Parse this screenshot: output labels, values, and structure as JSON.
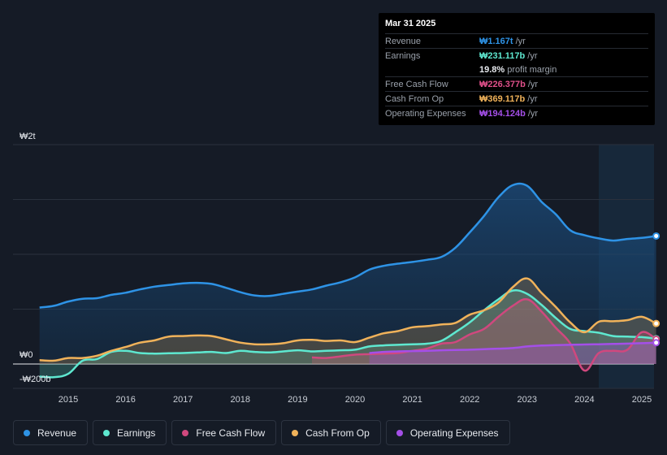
{
  "tooltip": {
    "date": "Mar 31 2025",
    "rows": [
      {
        "label": "Revenue",
        "value": "₩1.167t",
        "unit": "/yr",
        "color": "#2e93e6"
      },
      {
        "label": "Earnings",
        "value": "₩231.117b",
        "unit": "/yr",
        "color": "#5ee8d0"
      },
      {
        "label": "",
        "value": "19.8%",
        "unit": "profit margin",
        "color": "#e6e9ee"
      },
      {
        "label": "Free Cash Flow",
        "value": "₩226.377b",
        "unit": "/yr",
        "color": "#e0508a"
      },
      {
        "label": "Cash From Op",
        "value": "₩369.117b",
        "unit": "/yr",
        "color": "#f0b25a"
      },
      {
        "label": "Operating Expenses",
        "value": "₩194.124b",
        "unit": "/yr",
        "color": "#a44fe8"
      }
    ]
  },
  "legend": [
    {
      "label": "Revenue",
      "color": "#2e93e6"
    },
    {
      "label": "Earnings",
      "color": "#5ee8d0"
    },
    {
      "label": "Free Cash Flow",
      "color": "#d0487e"
    },
    {
      "label": "Cash From Op",
      "color": "#f0b25a"
    },
    {
      "label": "Operating Expenses",
      "color": "#a44fe8"
    }
  ],
  "chart_data": {
    "type": "area",
    "title": "",
    "xlabel": "",
    "ylabel": "",
    "y_axis_labels": [
      "₩2t",
      "₩0",
      "-₩200b"
    ],
    "x_ticks": [
      "2015",
      "2016",
      "2017",
      "2018",
      "2019",
      "2020",
      "2021",
      "2022",
      "2023",
      "2024",
      "2025"
    ],
    "xlim": [
      2014.5,
      2025.25
    ],
    "ylim": [
      -200,
      2000
    ],
    "units": "₩ billions",
    "forecast_start": 2024.25,
    "series": [
      {
        "name": "Revenue",
        "color": "#2e93e6",
        "fill": true,
        "points": [
          [
            2014.5,
            515
          ],
          [
            2014.75,
            530
          ],
          [
            2015.0,
            570
          ],
          [
            2015.25,
            595
          ],
          [
            2015.5,
            600
          ],
          [
            2015.75,
            630
          ],
          [
            2016.0,
            650
          ],
          [
            2016.25,
            680
          ],
          [
            2016.5,
            705
          ],
          [
            2016.75,
            720
          ],
          [
            2017.0,
            735
          ],
          [
            2017.25,
            740
          ],
          [
            2017.5,
            730
          ],
          [
            2017.75,
            695
          ],
          [
            2018.0,
            655
          ],
          [
            2018.25,
            625
          ],
          [
            2018.5,
            620
          ],
          [
            2018.75,
            640
          ],
          [
            2019.0,
            660
          ],
          [
            2019.25,
            680
          ],
          [
            2019.5,
            715
          ],
          [
            2019.75,
            745
          ],
          [
            2020.0,
            790
          ],
          [
            2020.25,
            860
          ],
          [
            2020.5,
            895
          ],
          [
            2020.75,
            915
          ],
          [
            2021.0,
            930
          ],
          [
            2021.25,
            950
          ],
          [
            2021.5,
            975
          ],
          [
            2021.75,
            1060
          ],
          [
            2022.0,
            1200
          ],
          [
            2022.25,
            1350
          ],
          [
            2022.5,
            1520
          ],
          [
            2022.75,
            1630
          ],
          [
            2023.0,
            1625
          ],
          [
            2023.25,
            1480
          ],
          [
            2023.5,
            1365
          ],
          [
            2023.75,
            1220
          ],
          [
            2024.0,
            1175
          ],
          [
            2024.25,
            1145
          ],
          [
            2024.5,
            1125
          ],
          [
            2024.75,
            1140
          ],
          [
            2025.0,
            1150
          ],
          [
            2025.25,
            1167
          ]
        ]
      },
      {
        "name": "Earnings",
        "color": "#5ee8d0",
        "fill": true,
        "points": [
          [
            2014.5,
            -115
          ],
          [
            2014.75,
            -120
          ],
          [
            2015.0,
            -90
          ],
          [
            2015.25,
            30
          ],
          [
            2015.5,
            45
          ],
          [
            2015.75,
            110
          ],
          [
            2016.0,
            120
          ],
          [
            2016.25,
            100
          ],
          [
            2016.5,
            95
          ],
          [
            2016.75,
            98
          ],
          [
            2017.0,
            100
          ],
          [
            2017.25,
            105
          ],
          [
            2017.5,
            110
          ],
          [
            2017.75,
            100
          ],
          [
            2018.0,
            120
          ],
          [
            2018.25,
            110
          ],
          [
            2018.5,
            105
          ],
          [
            2018.75,
            115
          ],
          [
            2019.0,
            125
          ],
          [
            2019.25,
            115
          ],
          [
            2019.5,
            120
          ],
          [
            2019.75,
            125
          ],
          [
            2020.0,
            130
          ],
          [
            2020.25,
            160
          ],
          [
            2020.5,
            170
          ],
          [
            2020.75,
            175
          ],
          [
            2021.0,
            180
          ],
          [
            2021.25,
            185
          ],
          [
            2021.5,
            210
          ],
          [
            2021.75,
            290
          ],
          [
            2022.0,
            380
          ],
          [
            2022.25,
            490
          ],
          [
            2022.5,
            590
          ],
          [
            2022.75,
            670
          ],
          [
            2023.0,
            640
          ],
          [
            2023.25,
            540
          ],
          [
            2023.5,
            420
          ],
          [
            2023.75,
            320
          ],
          [
            2024.0,
            300
          ],
          [
            2024.25,
            285
          ],
          [
            2024.5,
            255
          ],
          [
            2024.75,
            250
          ],
          [
            2025.0,
            245
          ],
          [
            2025.25,
            231
          ]
        ]
      },
      {
        "name": "Free Cash Flow",
        "color": "#d0487e",
        "fill": true,
        "points": [
          [
            2019.25,
            60
          ],
          [
            2019.5,
            55
          ],
          [
            2019.75,
            70
          ],
          [
            2020.0,
            85
          ],
          [
            2020.25,
            90
          ],
          [
            2020.5,
            95
          ],
          [
            2020.75,
            100
          ],
          [
            2021.0,
            120
          ],
          [
            2021.25,
            140
          ],
          [
            2021.5,
            185
          ],
          [
            2021.75,
            200
          ],
          [
            2022.0,
            270
          ],
          [
            2022.25,
            320
          ],
          [
            2022.5,
            430
          ],
          [
            2022.75,
            530
          ],
          [
            2023.0,
            590
          ],
          [
            2023.25,
            480
          ],
          [
            2023.5,
            330
          ],
          [
            2023.75,
            190
          ],
          [
            2024.0,
            -60
          ],
          [
            2024.25,
            100
          ],
          [
            2024.5,
            120
          ],
          [
            2024.75,
            130
          ],
          [
            2025.0,
            290
          ],
          [
            2025.25,
            226
          ]
        ]
      },
      {
        "name": "Cash From Op",
        "color": "#f0b25a",
        "fill": true,
        "points": [
          [
            2014.5,
            35
          ],
          [
            2014.75,
            30
          ],
          [
            2015.0,
            55
          ],
          [
            2015.25,
            55
          ],
          [
            2015.5,
            75
          ],
          [
            2015.75,
            120
          ],
          [
            2016.0,
            155
          ],
          [
            2016.25,
            195
          ],
          [
            2016.5,
            215
          ],
          [
            2016.75,
            250
          ],
          [
            2017.0,
            255
          ],
          [
            2017.25,
            260
          ],
          [
            2017.5,
            255
          ],
          [
            2017.75,
            225
          ],
          [
            2018.0,
            195
          ],
          [
            2018.25,
            180
          ],
          [
            2018.5,
            180
          ],
          [
            2018.75,
            190
          ],
          [
            2019.0,
            215
          ],
          [
            2019.25,
            220
          ],
          [
            2019.5,
            210
          ],
          [
            2019.75,
            215
          ],
          [
            2020.0,
            200
          ],
          [
            2020.25,
            240
          ],
          [
            2020.5,
            280
          ],
          [
            2020.75,
            300
          ],
          [
            2021.0,
            335
          ],
          [
            2021.25,
            345
          ],
          [
            2021.5,
            360
          ],
          [
            2021.75,
            375
          ],
          [
            2022.0,
            450
          ],
          [
            2022.25,
            490
          ],
          [
            2022.5,
            560
          ],
          [
            2022.75,
            700
          ],
          [
            2023.0,
            780
          ],
          [
            2023.25,
            650
          ],
          [
            2023.5,
            520
          ],
          [
            2023.75,
            380
          ],
          [
            2024.0,
            290
          ],
          [
            2024.25,
            385
          ],
          [
            2024.5,
            390
          ],
          [
            2024.75,
            400
          ],
          [
            2025.0,
            430
          ],
          [
            2025.25,
            369
          ]
        ]
      },
      {
        "name": "Operating Expenses",
        "color": "#a44fe8",
        "fill": true,
        "points": [
          [
            2020.25,
            100
          ],
          [
            2020.5,
            110
          ],
          [
            2020.75,
            115
          ],
          [
            2021.0,
            118
          ],
          [
            2021.25,
            120
          ],
          [
            2021.5,
            125
          ],
          [
            2021.75,
            128
          ],
          [
            2022.0,
            130
          ],
          [
            2022.25,
            135
          ],
          [
            2022.5,
            140
          ],
          [
            2022.75,
            145
          ],
          [
            2023.0,
            160
          ],
          [
            2023.25,
            168
          ],
          [
            2023.5,
            172
          ],
          [
            2023.75,
            175
          ],
          [
            2024.0,
            178
          ],
          [
            2024.25,
            180
          ],
          [
            2024.5,
            183
          ],
          [
            2024.75,
            186
          ],
          [
            2025.0,
            190
          ],
          [
            2025.25,
            194
          ]
        ]
      }
    ]
  }
}
